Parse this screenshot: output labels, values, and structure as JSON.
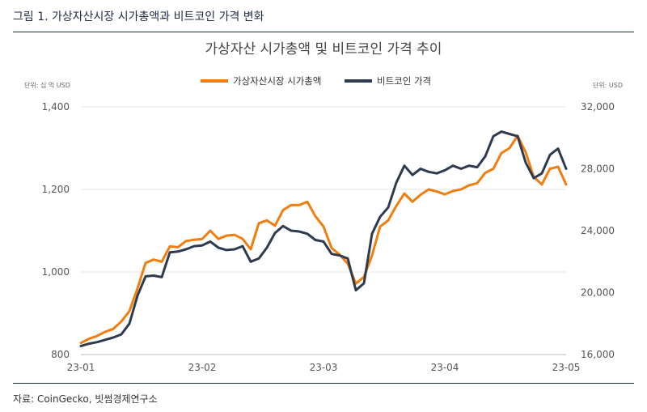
{
  "figure": {
    "caption": "그림 1.  가상자산시장 시가총액과 비트코인 가격 변화",
    "source": "자료: CoinGecko, 빗썸경제연구소"
  },
  "chart_data": {
    "type": "line",
    "title": "가상자산 시가총액 및 비트코인 가격 추이",
    "colors": {
      "market_cap": "#f07d0e",
      "btc": "#2e3a4f"
    },
    "x": {
      "ticks": [
        "23-01",
        "23-02",
        "23-03",
        "23-04",
        "23-05"
      ],
      "range": [
        "2023-01-01",
        "2023-05-01"
      ]
    },
    "y_left": {
      "unit_label": "단위: 십 억 USD",
      "range": [
        800,
        1400
      ],
      "ticks": [
        "800",
        "1,000",
        "1,200",
        "1,400"
      ]
    },
    "y_right": {
      "unit_label": "단위: USD",
      "range": [
        16000,
        32000
      ],
      "ticks": [
        "16,000",
        "20,000",
        "24,000",
        "28,000",
        "32,000"
      ]
    },
    "legend": {
      "placement": "top-center"
    },
    "series": [
      {
        "name": "가상자산시장 시가총액",
        "axis": "left",
        "color": "#f07d0e",
        "x": [
          "2023-01-01",
          "2023-01-03",
          "2023-01-05",
          "2023-01-07",
          "2023-01-09",
          "2023-01-11",
          "2023-01-13",
          "2023-01-15",
          "2023-01-17",
          "2023-01-19",
          "2023-01-21",
          "2023-01-23",
          "2023-01-25",
          "2023-01-27",
          "2023-01-29",
          "2023-01-31",
          "2023-02-02",
          "2023-02-04",
          "2023-02-06",
          "2023-02-08",
          "2023-02-10",
          "2023-02-12",
          "2023-02-14",
          "2023-02-16",
          "2023-02-18",
          "2023-02-20",
          "2023-02-22",
          "2023-02-24",
          "2023-02-26",
          "2023-02-28",
          "2023-03-02",
          "2023-03-04",
          "2023-03-06",
          "2023-03-08",
          "2023-03-10",
          "2023-03-12",
          "2023-03-14",
          "2023-03-16",
          "2023-03-18",
          "2023-03-20",
          "2023-03-22",
          "2023-03-24",
          "2023-03-26",
          "2023-03-28",
          "2023-03-30",
          "2023-04-01",
          "2023-04-03",
          "2023-04-05",
          "2023-04-07",
          "2023-04-09",
          "2023-04-11",
          "2023-04-13",
          "2023-04-15",
          "2023-04-17",
          "2023-04-19",
          "2023-04-21",
          "2023-04-23",
          "2023-04-25",
          "2023-04-27",
          "2023-04-29",
          "2023-05-01"
        ],
        "y": [
          828,
          838,
          845,
          855,
          862,
          880,
          905,
          960,
          1022,
          1030,
          1025,
          1062,
          1060,
          1075,
          1078,
          1080,
          1100,
          1080,
          1088,
          1090,
          1080,
          1055,
          1118,
          1125,
          1112,
          1150,
          1162,
          1162,
          1170,
          1135,
          1110,
          1058,
          1042,
          1020,
          972,
          988,
          1040,
          1110,
          1125,
          1160,
          1190,
          1170,
          1187,
          1200,
          1195,
          1188,
          1196,
          1200,
          1210,
          1215,
          1240,
          1250,
          1288,
          1300,
          1330,
          1290,
          1230,
          1212,
          1250,
          1255,
          1212
        ]
      },
      {
        "name": "비트코인 가격",
        "axis": "right",
        "color": "#2e3a4f",
        "x": [
          "2023-01-01",
          "2023-01-03",
          "2023-01-05",
          "2023-01-07",
          "2023-01-09",
          "2023-01-11",
          "2023-01-13",
          "2023-01-15",
          "2023-01-17",
          "2023-01-19",
          "2023-01-21",
          "2023-01-23",
          "2023-01-25",
          "2023-01-27",
          "2023-01-29",
          "2023-01-31",
          "2023-02-02",
          "2023-02-04",
          "2023-02-06",
          "2023-02-08",
          "2023-02-10",
          "2023-02-12",
          "2023-02-14",
          "2023-02-16",
          "2023-02-18",
          "2023-02-20",
          "2023-02-22",
          "2023-02-24",
          "2023-02-26",
          "2023-02-28",
          "2023-03-02",
          "2023-03-04",
          "2023-03-06",
          "2023-03-08",
          "2023-03-10",
          "2023-03-12",
          "2023-03-14",
          "2023-03-16",
          "2023-03-18",
          "2023-03-20",
          "2023-03-22",
          "2023-03-24",
          "2023-03-26",
          "2023-03-28",
          "2023-03-30",
          "2023-04-01",
          "2023-04-03",
          "2023-04-05",
          "2023-04-07",
          "2023-04-09",
          "2023-04-11",
          "2023-04-13",
          "2023-04-15",
          "2023-04-17",
          "2023-04-19",
          "2023-04-21",
          "2023-04-23",
          "2023-04-25",
          "2023-04-27",
          "2023-04-29",
          "2023-05-01"
        ],
        "y": [
          16550,
          16700,
          16800,
          16950,
          17100,
          17300,
          18000,
          19800,
          21050,
          21100,
          21000,
          22600,
          22650,
          22800,
          23000,
          23050,
          23300,
          22900,
          22750,
          22800,
          23000,
          22000,
          22200,
          22900,
          23850,
          24300,
          24000,
          23950,
          23800,
          23400,
          23300,
          22500,
          22400,
          22200,
          20150,
          20600,
          23800,
          24900,
          25500,
          27100,
          28200,
          27600,
          28000,
          27800,
          27700,
          27900,
          28200,
          28000,
          28200,
          28100,
          28800,
          30100,
          30400,
          30250,
          30100,
          28400,
          27400,
          27700,
          28900,
          29300,
          28000
        ]
      }
    ]
  }
}
